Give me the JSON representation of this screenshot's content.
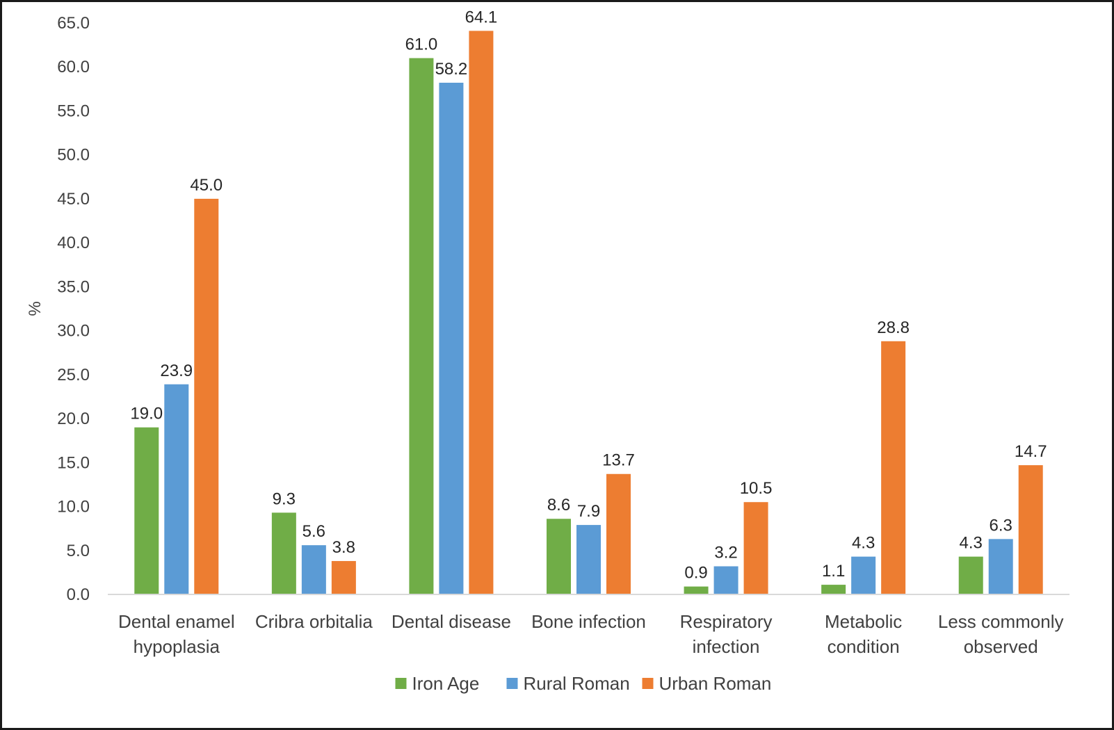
{
  "chart_data": {
    "type": "bar",
    "ylabel": "%",
    "ylim": [
      0,
      65
    ],
    "ytick_step": 5,
    "ytick_labels": [
      "0.0",
      "5.0",
      "10.0",
      "15.0",
      "20.0",
      "25.0",
      "30.0",
      "35.0",
      "40.0",
      "45.0",
      "50.0",
      "55.0",
      "60.0",
      "65.0"
    ],
    "categories": [
      [
        "Dental enamel",
        "hypoplasia"
      ],
      [
        "Cribra orbitalia"
      ],
      [
        "Dental disease"
      ],
      [
        "Bone infection"
      ],
      [
        "Respiratory",
        "infection"
      ],
      [
        "Metabolic",
        "condition"
      ],
      [
        "Less commonly",
        "observed"
      ]
    ],
    "series": [
      {
        "name": "Iron Age",
        "color": "#70ad47",
        "values": [
          19.0,
          9.3,
          61.0,
          8.6,
          0.9,
          1.1,
          4.3
        ],
        "labels": [
          "19.0",
          "9.3",
          "61.0",
          "8.6",
          "0.9",
          "1.1",
          "4.3"
        ]
      },
      {
        "name": "Rural Roman",
        "color": "#5b9bd5",
        "values": [
          23.9,
          5.6,
          58.2,
          7.9,
          3.2,
          4.3,
          6.3
        ],
        "labels": [
          "23.9",
          "5.6",
          "58.2",
          "7.9",
          "3.2",
          "4.3",
          "6.3"
        ]
      },
      {
        "name": "Urban Roman",
        "color": "#ed7d31",
        "values": [
          45.0,
          3.8,
          64.1,
          13.7,
          10.5,
          28.8,
          14.7
        ],
        "labels": [
          "45.0",
          "3.8",
          "64.1",
          "13.7",
          "10.5",
          "28.8",
          "14.7"
        ]
      }
    ],
    "grid": false,
    "legend_position": "bottom"
  }
}
